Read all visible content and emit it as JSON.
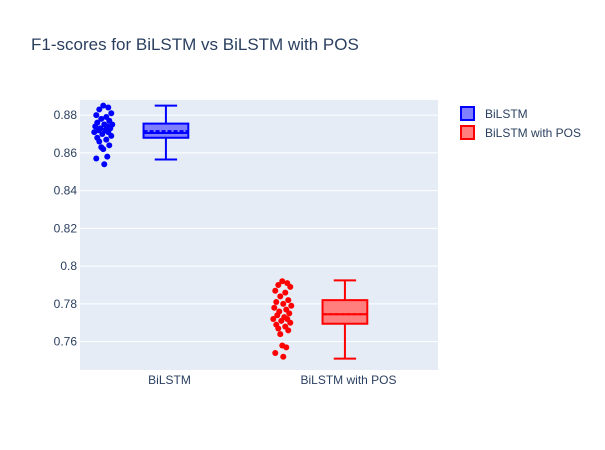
{
  "chart_data": {
    "type": "box",
    "title": "F1-scores for BiLSTM vs BiLSTM with POS",
    "xlabel": "",
    "ylabel": "",
    "categories": [
      "BiLSTM",
      "BiLSTM with POS"
    ],
    "ylim": [
      0.745,
      0.888
    ],
    "yticks": [
      0.76,
      0.78,
      0.8,
      0.82,
      0.84,
      0.86,
      0.88
    ],
    "ytick_labels": [
      "0.76",
      "0.78",
      "0.8",
      "0.82",
      "0.84",
      "0.86",
      "0.88"
    ],
    "grid": true,
    "legend_position": "top-right",
    "series": [
      {
        "name": "BiLSTM",
        "category": "BiLSTM",
        "line_color": "#0000ff",
        "fill_color": "#7f7fff",
        "box": {
          "lowerfence": 0.8565,
          "q1": 0.868,
          "median": 0.8705,
          "mean": 0.8715,
          "q3": 0.8755,
          "upperfence": 0.885
        },
        "points": [
          0.885,
          0.884,
          0.883,
          0.881,
          0.88,
          0.879,
          0.878,
          0.877,
          0.876,
          0.875,
          0.875,
          0.874,
          0.874,
          0.873,
          0.873,
          0.872,
          0.872,
          0.871,
          0.871,
          0.87,
          0.869,
          0.868,
          0.867,
          0.866,
          0.864,
          0.863,
          0.862,
          0.858,
          0.857,
          0.854
        ]
      },
      {
        "name": "BiLSTM with POS",
        "category": "BiLSTM with POS",
        "line_color": "#ff0000",
        "fill_color": "#ff7f7f",
        "box": {
          "lowerfence": 0.751,
          "q1": 0.7695,
          "median": 0.7745,
          "mean": 0.7745,
          "q3": 0.782,
          "upperfence": 0.7925
        },
        "points": [
          0.792,
          0.791,
          0.79,
          0.789,
          0.787,
          0.786,
          0.784,
          0.782,
          0.781,
          0.78,
          0.779,
          0.778,
          0.777,
          0.776,
          0.775,
          0.774,
          0.773,
          0.772,
          0.772,
          0.771,
          0.77,
          0.769,
          0.768,
          0.767,
          0.766,
          0.764,
          0.758,
          0.757,
          0.754,
          0.752
        ]
      }
    ]
  }
}
